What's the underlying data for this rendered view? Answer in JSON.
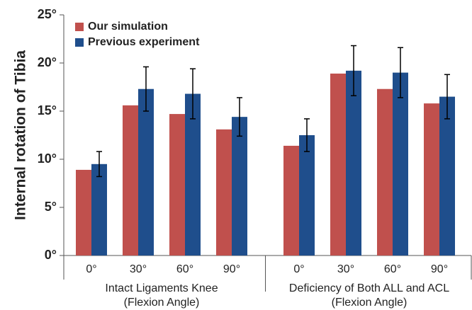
{
  "chart_data": {
    "type": "bar",
    "y_axis_label": "Internal rotation of Tibia",
    "categories": [
      "0°",
      "30°",
      "60°",
      "90°",
      "0°",
      "30°",
      "60°",
      "90°"
    ],
    "category_groups": [
      {
        "label_lines": [
          "Intact Ligaments Knee",
          "(Flexion Angle)"
        ]
      },
      {
        "label_lines": [
          "Deficiency of Both ALL and ACL",
          "(Flexion Angle)"
        ]
      }
    ],
    "series": [
      {
        "name": "Our simulation",
        "color": "#c0504d",
        "values": [
          8.9,
          15.6,
          14.7,
          13.1,
          11.4,
          18.9,
          17.3,
          15.8
        ]
      },
      {
        "name": "Previous experiment",
        "color": "#1f4e8c",
        "values": [
          9.5,
          17.3,
          16.8,
          14.4,
          12.5,
          19.2,
          19.0,
          16.5
        ],
        "errors": [
          1.3,
          2.3,
          2.6,
          2.0,
          1.7,
          2.6,
          2.6,
          2.3
        ]
      }
    ],
    "ylim": [
      0,
      25
    ],
    "yticks": [
      {
        "value": 0,
        "label": "0°"
      },
      {
        "value": 5,
        "label": "5°"
      },
      {
        "value": 10,
        "label": "10°"
      },
      {
        "value": 15,
        "label": "15°"
      },
      {
        "value": 20,
        "label": "20°"
      },
      {
        "value": 25,
        "label": "25°"
      }
    ],
    "legend": "top-left"
  }
}
